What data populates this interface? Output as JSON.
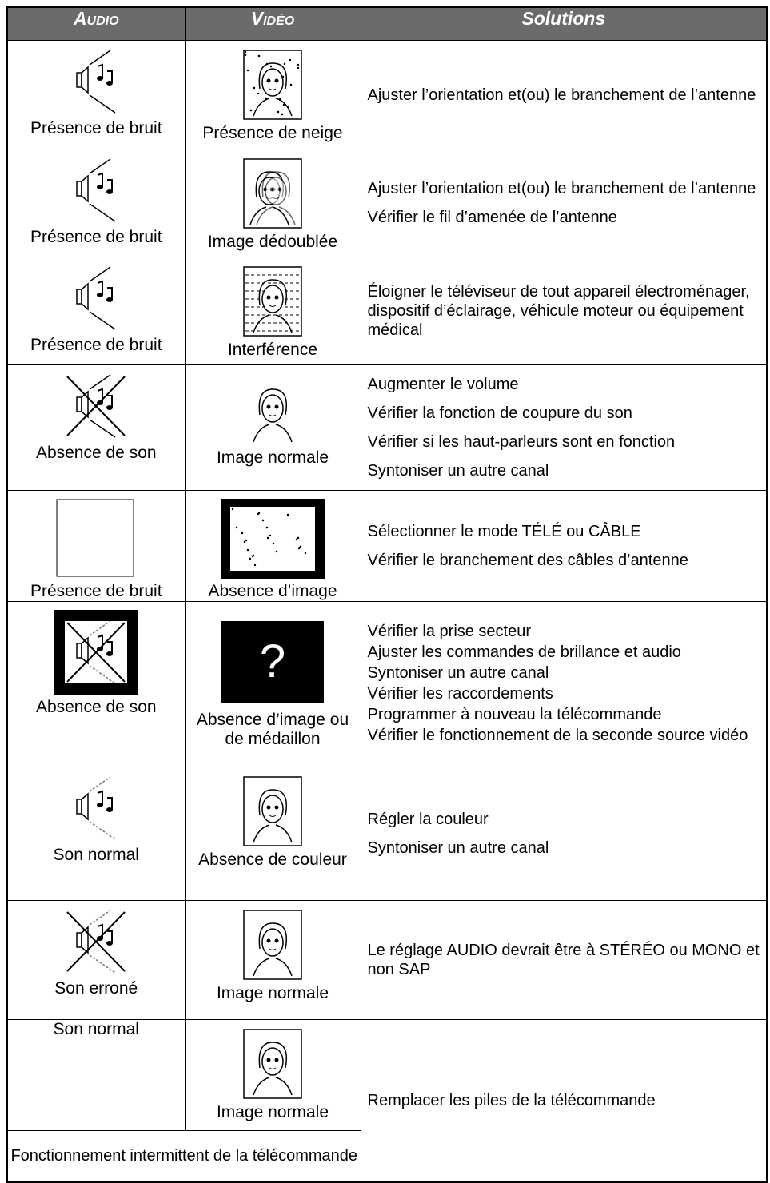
{
  "table": {
    "header": [
      "Audio",
      "Vidéo",
      "Solutions"
    ],
    "rows": [
      {
        "audio": "Présence de bruit",
        "video": "Présence de neige",
        "solutions": [
          "Ajuster l’orientation et(ou) le branchement de l’antenne"
        ]
      },
      {
        "audio": "Présence de bruit",
        "video": "Image dédoublée",
        "solutions": [
          "Ajuster l’orientation et(ou) le  branchement de l’antenne",
          "Vérifier le fil d’amenée de l’antenne"
        ]
      },
      {
        "audio": "Présence de bruit",
        "video": "Interférence",
        "solutions": [
          "Éloigner le téléviseur de tout appareil électroménager, dispositif d’éclairage, véhicule moteur ou équipement médical"
        ]
      },
      {
        "audio": "Absence de son",
        "video": "Image normale",
        "solutions": [
          "Augmenter le volume",
          "Vérifier la fonction de coupure du son",
          "Vérifier si les haut-parleurs sont en fonction",
          "Syntoniser un autre canal"
        ]
      },
      {
        "audio": "Présence de bruit",
        "video": "Absence d’image",
        "solutions": [
          "Sélectionner le mode TÉLÉ ou CÂBLE",
          "Vérifier le branchement des câbles d’antenne"
        ]
      },
      {
        "audio": "Absence de son",
        "video": "Absence d’image ou de médaillon",
        "video_icon_text": "?",
        "solutions": [
          "Vérifier la prise secteur",
          "Ajuster les commandes de brillance et audio",
          "Syntoniser un autre canal",
          "Vérifier les raccordements",
          "Programmer à nouveau la télécommande",
          "Vérifier le fonctionnement de la seconde source vidéo"
        ]
      },
      {
        "audio": "Son normal",
        "video": "Absence de couleur",
        "solutions": [
          "Régler  la couleur",
          "Syntoniser un autre canal"
        ]
      },
      {
        "audio": "Son erroné",
        "video": "Image normale",
        "solutions": [
          "Le réglage AUDIO devrait être à STÉRÉO ou MONO et non SAP"
        ]
      },
      {
        "audio": "Son normal",
        "video": "Image normale",
        "note": "Fonctionnement intermittent de la télécommande",
        "solutions": [
          "Remplacer les piles de la télécommande"
        ]
      }
    ]
  }
}
